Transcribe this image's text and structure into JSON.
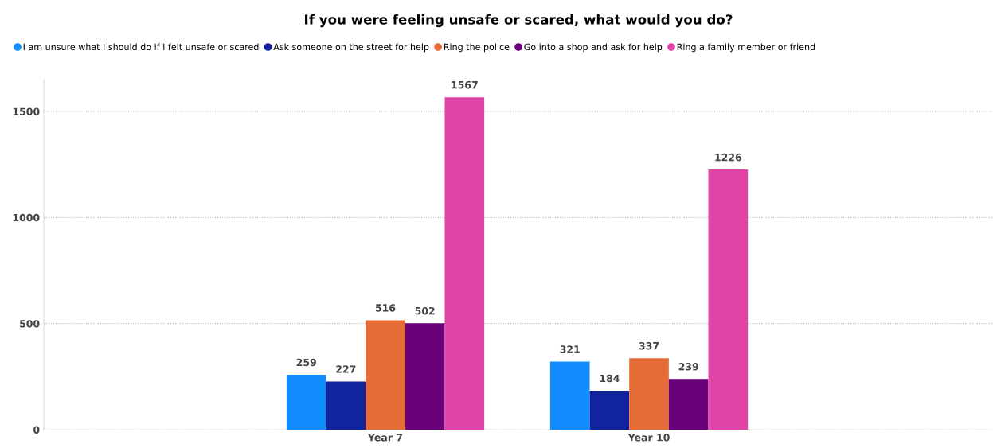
{
  "chart_data": {
    "type": "bar",
    "title": "If you were feeling unsafe or scared, what would you do?",
    "categories": [
      "Year 7",
      "Year 10"
    ],
    "series": [
      {
        "name": "I am unsure what I should do if I felt unsafe or scared",
        "color": "#118dff",
        "values": [
          259,
          321
        ]
      },
      {
        "name": "Ask someone on the street for help",
        "color": "#12239e",
        "values": [
          227,
          184
        ]
      },
      {
        "name": "Ring the police",
        "color": "#e66c37",
        "values": [
          516,
          337
        ]
      },
      {
        "name": "Go into a shop and ask for help",
        "color": "#6b007b",
        "values": [
          502,
          239
        ]
      },
      {
        "name": "Ring a family member or friend",
        "color": "#e044a7",
        "values": [
          1567,
          1226
        ]
      }
    ],
    "ylim": [
      0,
      1650
    ],
    "yticks": [
      0,
      500,
      1000,
      1500
    ],
    "grid": "y",
    "legend": "top left",
    "data_labels": true
  }
}
